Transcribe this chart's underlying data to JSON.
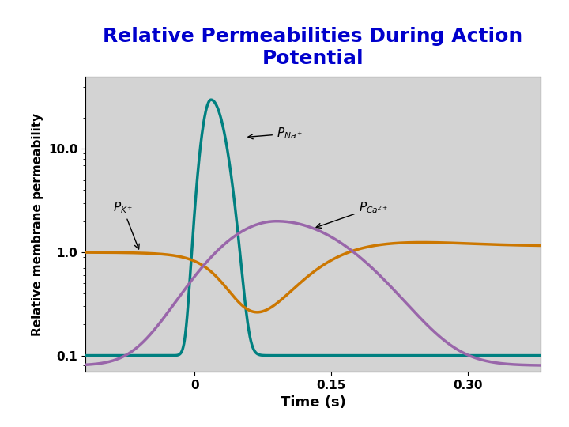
{
  "title": "Relative Permeabilities During Action\nPotential",
  "title_color": "#0000CC",
  "title_fontsize": 18,
  "xlabel": "Time (s)",
  "ylabel": "Relative membrane permeability",
  "bg_color": "#D3D3D3",
  "fig_bg": "#FFFFFF",
  "xlim": [
    -0.12,
    0.38
  ],
  "ylim_log": [
    0.07,
    50
  ],
  "yticks": [
    0.1,
    1.0,
    10.0
  ],
  "ytick_labels": [
    "0.1",
    "1.0",
    "10.0"
  ],
  "xticks": [
    0,
    0.15,
    0.3
  ],
  "xtick_labels": [
    "0",
    "0.15",
    "0.30"
  ],
  "colors": {
    "Na": "#008080",
    "K": "#CC7700",
    "Ca": "#9966AA"
  },
  "linewidth": 2.5
}
